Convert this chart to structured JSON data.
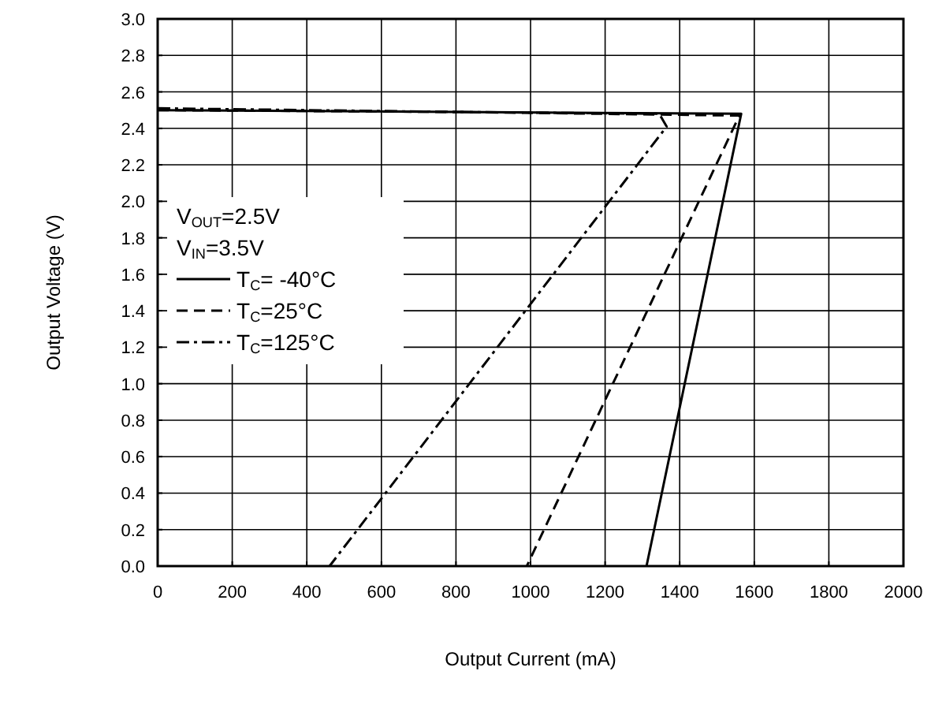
{
  "chart_data": {
    "type": "line",
    "xlabel": "Output Current (mA)",
    "ylabel": "Output Voltage (V)",
    "annotations": [
      "V$_{OUT}$=2.5V",
      "V$_{IN}$=3.5V"
    ],
    "xlim": [
      0,
      2000
    ],
    "xticks": [
      0,
      200,
      400,
      600,
      800,
      1000,
      1200,
      1400,
      1600,
      1800,
      2000
    ],
    "ylim": [
      0,
      3
    ],
    "yticks": [
      {
        "value": 0,
        "label": "0.0"
      },
      0.2,
      0.4,
      0.6,
      0.8,
      {
        "value": 1,
        "label": "1.0"
      },
      1.2,
      1.4,
      1.6,
      1.8,
      {
        "value": 2,
        "label": "2.0"
      },
      2.2,
      2.4,
      2.6,
      2.8,
      {
        "value": 3,
        "label": "3.0"
      }
    ],
    "grid": true,
    "legend": "left",
    "series": [
      {
        "name": "T$_{C}$= -40°C",
        "color": "#000000",
        "line_style": "solid",
        "x": [
          0,
          800,
          1565,
          1311
        ],
        "values": [
          2.5,
          2.49,
          2.48,
          0
        ]
      },
      {
        "name": "T$_{C}$=25°C",
        "color": "#000000",
        "line_style": "dashed",
        "x": [
          0,
          800,
          1560,
          990
        ],
        "values": [
          2.5,
          2.49,
          2.47,
          0
        ]
      },
      {
        "name": "T$_{C}$=125°C",
        "color": "#000000",
        "line_style": "dashdot",
        "x": [
          0,
          800,
          1345,
          1365,
          461
        ],
        "values": [
          2.51,
          2.49,
          2.48,
          2.41,
          0
        ]
      }
    ]
  }
}
